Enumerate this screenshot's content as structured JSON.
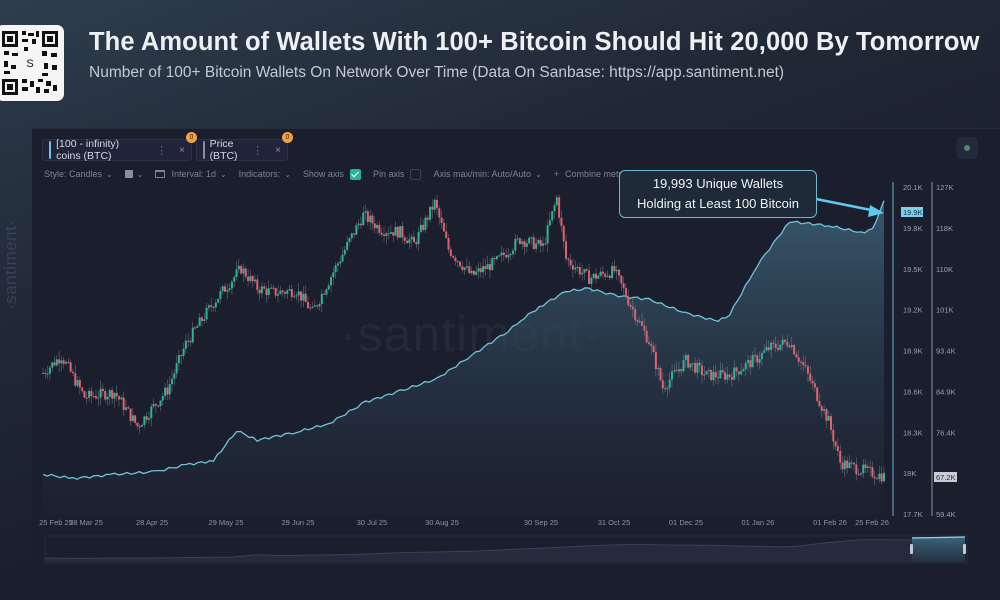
{
  "header": {
    "title": "The Amount of Wallets With 100+ Bitcoin Should Hit 20,000 By Tomorrow",
    "subtitle": "Number of 100+ Bitcoin Wallets On Network Over Time (Data On Sanbase: https://app.santiment.net)",
    "qr_icon": "qr-code-icon",
    "qr_center_letter": "S"
  },
  "metrics": [
    {
      "label": "[100 - infinity) coins (BTC)",
      "color": "#6fc3dc",
      "badge": "0",
      "menu_icon": "⋮",
      "close_icon": "×"
    },
    {
      "label": "Price (BTC)",
      "color": "#8a8f9c",
      "badge": "0",
      "menu_icon": "⋮",
      "close_icon": "×"
    }
  ],
  "toolbar": {
    "style_label": "Style: Candles",
    "color_label": "",
    "interval_label": "Interval: 1d",
    "indicators_label": "Indicators:",
    "show_axis_label": "Show axis",
    "show_axis_checked": true,
    "pin_axis_label": "Pin axis",
    "pin_axis_checked": false,
    "axis_maxmin_label": "Axis max/min: Auto/Auto",
    "combine_label": "Combine metrics",
    "combine_icon": "+",
    "chevron": "⌄"
  },
  "callout": {
    "line1": "19,993 Unique Wallets",
    "line2": "Holding at Least 100 Bitcoin"
  },
  "watermark": "·santiment·",
  "colors": {
    "wallets_line": "#6fc3dc",
    "candle_up": "#2fb391",
    "candle_down": "#e0626c",
    "accent_check": "#26b59a",
    "current_value_bg": "#7fd0ea"
  },
  "chart_data": {
    "type": "line",
    "title": "Number of 100+ Bitcoin Wallets On Network Over Time",
    "xlabel": "",
    "ylabel": "",
    "x_ticks": [
      "25 Feb 25",
      "28 Mar 25",
      "28 Apr 25",
      "29 May 25",
      "29 Jun 25",
      "30 Jul 25",
      "30 Aug 25",
      "30 Sep 25",
      "31 Oct 25",
      "01 Dec 25",
      "01 Jan 26",
      "01 Feb 26",
      "25 Feb 26"
    ],
    "left_axis": {
      "name": "[100 - infinity) coins (BTC)",
      "ticks": [
        "20.1K",
        "19.8K",
        "19.5K",
        "19.2K",
        "18.9K",
        "18.6K",
        "18.3K",
        "18K",
        "17.7K"
      ],
      "range": [
        17700,
        20100
      ],
      "current": "19.9K"
    },
    "right_axis": {
      "name": "Price (BTC)",
      "ticks": [
        "127K",
        "118K",
        "110K",
        "101K",
        "93.4K",
        "84.9K",
        "76.4K",
        "67.9K",
        "59.4K"
      ],
      "range": [
        59400,
        127000
      ],
      "current": "67.2K"
    },
    "series": [
      {
        "name": "[100 - infinity) coins (BTC)",
        "type": "area",
        "x": [
          "25 Feb 25",
          "10 Mar 25",
          "28 Mar 25",
          "15 Apr 25",
          "28 Apr 25",
          "10 May 25",
          "20 May 25",
          "29 May 25",
          "15 Jun 25",
          "29 Jun 25",
          "15 Jul 25",
          "30 Jul 25",
          "15 Aug 25",
          "30 Aug 25",
          "15 Sep 25",
          "22 Sep 25",
          "30 Sep 25",
          "10 Oct 25",
          "20 Oct 25",
          "31 Oct 25",
          "15 Nov 25",
          "01 Dec 25",
          "15 Dec 25",
          "20 Dec 25",
          "01 Jan 26",
          "15 Jan 26",
          "01 Feb 26",
          "15 Feb 26",
          "20 Feb 26",
          "25 Feb 26"
        ],
        "values": [
          17990,
          17960,
          17990,
          18010,
          18060,
          18090,
          18310,
          18240,
          18300,
          18360,
          18520,
          18600,
          18690,
          18860,
          19040,
          19140,
          19230,
          19330,
          19350,
          19300,
          19270,
          19170,
          19110,
          19160,
          19520,
          19840,
          19810,
          19760,
          19780,
          19993
        ]
      },
      {
        "name": "Price (BTC)",
        "type": "candlestick",
        "x": [
          "25 Feb 25",
          "05 Mar 25",
          "15 Mar 25",
          "28 Mar 25",
          "07 Apr 25",
          "20 Apr 25",
          "28 Apr 25",
          "10 May 25",
          "22 May 25",
          "29 May 25",
          "05 Jun 25",
          "15 Jun 25",
          "22 Jun 25",
          "29 Jun 25",
          "10 Jul 25",
          "14 Jul 25",
          "22 Jul 25",
          "30 Jul 25",
          "05 Aug 25",
          "14 Aug 25",
          "20 Aug 25",
          "30 Aug 25",
          "10 Sep 25",
          "20 Sep 25",
          "30 Sep 25",
          "06 Oct 25",
          "10 Oct 25",
          "20 Oct 25",
          "31 Oct 25",
          "07 Nov 25",
          "15 Nov 25",
          "21 Nov 25",
          "01 Dec 25",
          "10 Dec 25",
          "20 Dec 25",
          "01 Jan 26",
          "06 Jan 26",
          "15 Jan 26",
          "22 Jan 26",
          "01 Feb 26",
          "06 Feb 26",
          "15 Feb 26",
          "25 Feb 26"
        ],
        "values": [
          88500,
          92000,
          83500,
          84500,
          77500,
          85000,
          94500,
          103000,
          110000,
          106000,
          105000,
          105500,
          101000,
          107500,
          117500,
          121000,
          118000,
          117500,
          115000,
          123500,
          114000,
          108500,
          111500,
          116000,
          114500,
          124500,
          112000,
          108000,
          109500,
          102500,
          95000,
          85500,
          91000,
          88000,
          88000,
          91500,
          93500,
          95000,
          89000,
          78500,
          70000,
          68500,
          67200
        ]
      }
    ],
    "legend": [
      "[100 - infinity) coins (BTC)",
      "Price (BTC)"
    ],
    "annotations": [
      "19,993 Unique Wallets Holding at Least 100 Bitcoin"
    ],
    "grid": false
  }
}
